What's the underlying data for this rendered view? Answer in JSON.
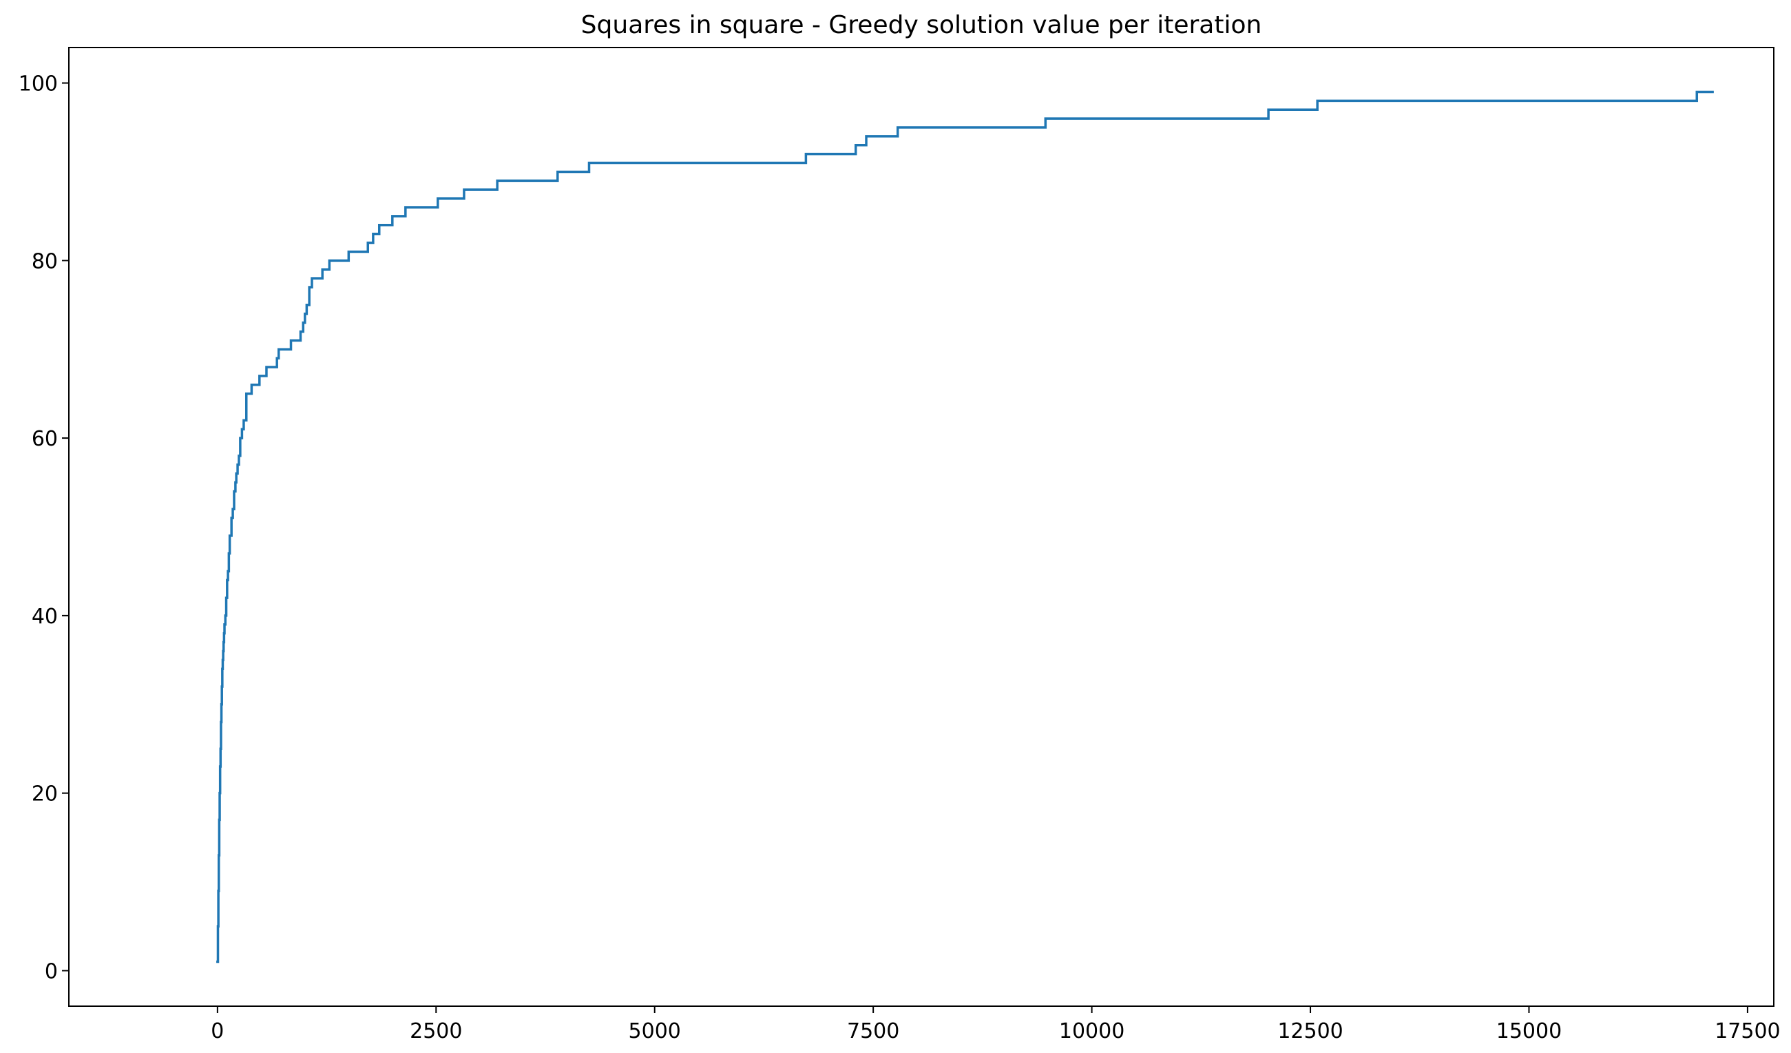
{
  "chart_data": {
    "type": "line",
    "title": "Squares in square - Greedy solution value per iteration",
    "xlabel": "",
    "ylabel": "",
    "xlim": [
      -1700,
      17800
    ],
    "ylim": [
      -4,
      104
    ],
    "xticks": [
      0,
      2500,
      5000,
      7500,
      10000,
      12500,
      15000,
      17500
    ],
    "xtick_labels": [
      "0",
      "2500",
      "5000",
      "7500",
      "10000",
      "12500",
      "15000",
      "17500"
    ],
    "yticks": [
      0,
      20,
      40,
      60,
      80,
      100
    ],
    "ytick_labels": [
      "0",
      "20",
      "40",
      "60",
      "80",
      "100"
    ],
    "grid": false,
    "series": [
      {
        "color": "#1f77b4",
        "step": "post",
        "x": [
          0,
          5,
          10,
          15,
          20,
          25,
          30,
          35,
          40,
          45,
          50,
          55,
          60,
          65,
          70,
          75,
          80,
          90,
          100,
          110,
          120,
          130,
          140,
          160,
          175,
          190,
          205,
          215,
          230,
          245,
          260,
          280,
          300,
          330,
          360,
          390,
          480,
          560,
          680,
          700,
          840,
          950,
          980,
          1000,
          1020,
          1050,
          1080,
          1120,
          1200,
          1280,
          1500,
          1720,
          1780,
          1850,
          2000,
          2150,
          2520,
          2820,
          3200,
          3890,
          4250,
          6730,
          7300,
          7420,
          7780,
          9470,
          12020,
          12580,
          16920,
          17100
        ],
        "y": [
          1,
          5,
          9,
          13,
          17,
          20,
          23,
          25,
          28,
          30,
          32,
          34,
          35,
          36,
          37,
          38,
          39,
          40,
          42,
          44,
          45,
          47,
          49,
          51,
          52,
          54,
          55,
          56,
          57,
          58,
          60,
          61,
          62,
          65,
          65,
          66,
          67,
          68,
          69,
          70,
          71,
          72,
          73,
          74,
          75,
          77,
          78,
          78,
          79,
          80,
          81,
          82,
          83,
          84,
          85,
          86,
          87,
          88,
          89,
          90,
          91,
          92,
          93,
          94,
          95,
          96,
          97,
          98,
          99,
          99
        ]
      }
    ]
  }
}
